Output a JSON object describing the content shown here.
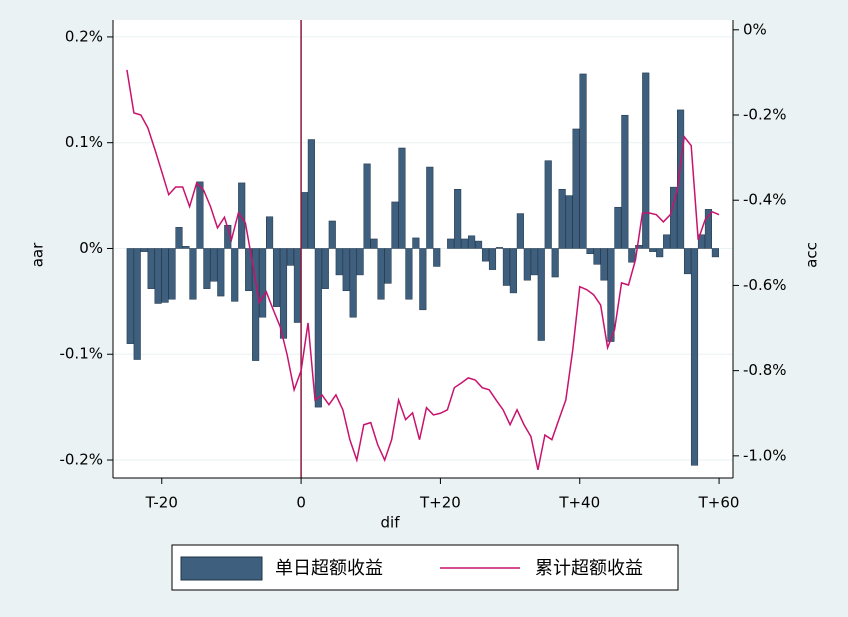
{
  "chart_data": {
    "type": "combo",
    "xlabel": "dif",
    "ylabel": "aar",
    "y2label": "acc",
    "x": [
      -25,
      -24,
      -23,
      -22,
      -21,
      -20,
      -19,
      -18,
      -17,
      -16,
      -15,
      -14,
      -13,
      -12,
      -11,
      -10,
      -9,
      -8,
      -7,
      -6,
      -5,
      -4,
      -3,
      -2,
      -1,
      0,
      1,
      2,
      3,
      4,
      5,
      6,
      7,
      8,
      9,
      10,
      11,
      12,
      13,
      14,
      15,
      16,
      17,
      18,
      19,
      20,
      21,
      22,
      23,
      24,
      25,
      26,
      27,
      28,
      29,
      30,
      31,
      32,
      33,
      34,
      35,
      36,
      37,
      38,
      39,
      40,
      41,
      42,
      43,
      44,
      45,
      46,
      47,
      48,
      49,
      50,
      51,
      52,
      53,
      54,
      55,
      56,
      57,
      58,
      59,
      60
    ],
    "series": [
      {
        "name": "单日超额收益",
        "type": "bar",
        "color": "#3e5f7e",
        "values": [
          -0.09,
          -0.105,
          -0.003,
          -0.038,
          -0.052,
          -0.051,
          -0.048,
          0.02,
          0.002,
          -0.048,
          0.063,
          -0.038,
          -0.031,
          -0.045,
          0.022,
          -0.05,
          0.062,
          -0.04,
          -0.106,
          -0.065,
          0.03,
          -0.055,
          -0.085,
          -0.016,
          -0.07,
          0.053,
          0.103,
          -0.15,
          -0.038,
          0.026,
          -0.025,
          -0.04,
          -0.065,
          -0.025,
          0.08,
          0.009,
          -0.048,
          -0.033,
          0.044,
          0.095,
          -0.048,
          0.01,
          -0.058,
          0.077,
          -0.017,
          0,
          0.009,
          0.056,
          0.009,
          0.012,
          0.007,
          -0.012,
          -0.02,
          0.001,
          -0.035,
          -0.042,
          0.033,
          -0.03,
          -0.025,
          -0.087,
          0.083,
          -0.027,
          0.056,
          0.05,
          0.113,
          0.165,
          -0.005,
          -0.015,
          -0.03,
          -0.088,
          0.039,
          0.126,
          -0.013,
          0.003,
          0.166,
          -0.003,
          -0.008,
          0.013,
          0.058,
          0.131,
          -0.024,
          -0.205,
          0.013,
          0.037,
          -0.008,
          null
        ]
      },
      {
        "name": "累计超额收益",
        "type": "line",
        "axis": "y2",
        "color": "#c8136e",
        "values": [
          -0.094,
          -0.195,
          -0.2,
          -0.23,
          -0.28,
          -0.333,
          -0.387,
          -0.369,
          -0.369,
          -0.415,
          -0.36,
          -0.376,
          -0.415,
          -0.465,
          -0.44,
          -0.493,
          -0.43,
          -0.453,
          -0.545,
          -0.64,
          -0.615,
          -0.657,
          -0.697,
          -0.763,
          -0.845,
          -0.8,
          -0.688,
          -0.869,
          -0.857,
          -0.88,
          -0.857,
          -0.892,
          -0.962,
          -1.01,
          -0.927,
          -0.922,
          -0.974,
          -1.01,
          -0.962,
          -0.869,
          -0.915,
          -0.899,
          -0.962,
          -0.887,
          -0.904,
          -0.9,
          -0.892,
          -0.84,
          -0.829,
          -0.817,
          -0.822,
          -0.84,
          -0.845,
          -0.869,
          -0.892,
          -0.927,
          -0.892,
          -0.927,
          -0.955,
          -1.033,
          -0.951,
          -0.962,
          -0.915,
          -0.869,
          -0.751,
          -0.603,
          -0.61,
          -0.622,
          -0.646,
          -0.746,
          -0.704,
          -0.594,
          -0.599,
          -0.54,
          -0.43,
          -0.43,
          -0.434,
          -0.451,
          -0.434,
          -0.376,
          -0.251,
          -0.272,
          -0.493,
          -0.446,
          -0.427,
          -0.434
        ]
      }
    ],
    "xlim": [
      -27,
      62
    ],
    "xticks": [
      {
        "value": -20,
        "label": "T-20"
      },
      0,
      {
        "value": 20,
        "label": "T+20"
      },
      {
        "value": 40,
        "label": "T+40"
      },
      {
        "value": 60,
        "label": "T+60"
      }
    ],
    "ylim": [
      -0.217,
      0.216
    ],
    "yticks": [
      {
        "value": 0.2,
        "label": "0.2%"
      },
      {
        "value": 0.1,
        "label": "0.1%"
      },
      {
        "value": 0,
        "label": "0%"
      },
      {
        "value": -0.1,
        "label": "-0.1%"
      },
      {
        "value": -0.2,
        "label": "-0.2%"
      }
    ],
    "y2lim": [
      -1.052,
      0.023
    ],
    "y2ticks": [
      {
        "value": 0,
        "label": "0%"
      },
      {
        "value": -0.2,
        "label": "-0.2%"
      },
      {
        "value": -0.4,
        "label": "-0.4%"
      },
      {
        "value": -0.6,
        "label": "-0.6%"
      },
      {
        "value": -0.8,
        "label": "-0.8%"
      },
      {
        "value": -1.0,
        "label": "-1.0%"
      }
    ],
    "xline": {
      "value": 0,
      "color": "#8b1a3a"
    },
    "grid": true
  }
}
